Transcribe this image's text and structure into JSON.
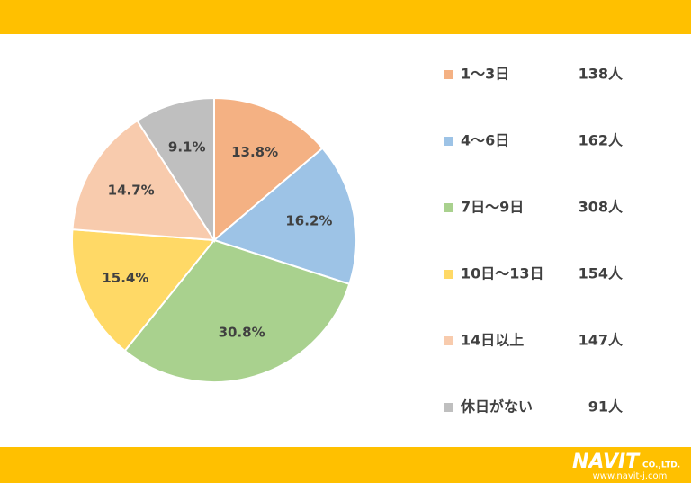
{
  "chart_data": {
    "type": "pie",
    "categories": [
      "1〜3日",
      "4〜6日",
      "7日〜9日",
      "10日〜13日",
      "14日以上",
      "休日がない"
    ],
    "values": [
      13.8,
      16.2,
      30.8,
      15.4,
      14.7,
      9.1
    ],
    "value_labels": [
      "13.8%",
      "16.2%",
      "30.8%",
      "15.4%",
      "14.7%",
      "9.1%"
    ],
    "counts": [
      138,
      162,
      308,
      154,
      147,
      91
    ],
    "count_labels": [
      "138人",
      "162人",
      "308人",
      "154人",
      "147人",
      "91人"
    ],
    "colors": [
      "#f4b183",
      "#9dc3e6",
      "#a9d18e",
      "#ffd966",
      "#f8cbad",
      "#bfbfbf"
    ],
    "legend": "right"
  },
  "footer": {
    "logo": "NAVIT",
    "company": "CO.,LTD.",
    "url": "www.navit-j.com"
  }
}
